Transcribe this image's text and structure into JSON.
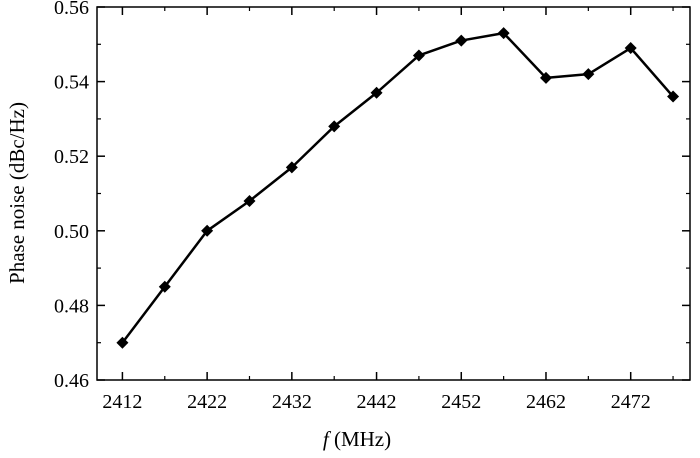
{
  "chart_data": {
    "type": "line",
    "xlabel_var": "f",
    "xlabel_unit": " (MHz)",
    "ylabel": "Phase noise (dBc/Hz)",
    "xlim": [
      2409,
      2479
    ],
    "ylim": [
      0.46,
      0.56
    ],
    "xticks": [
      2412,
      2422,
      2432,
      2442,
      2452,
      2462,
      2472
    ],
    "yticks": [
      0.46,
      0.48,
      0.5,
      0.52,
      0.54,
      0.56
    ],
    "ytick_labels": [
      "0.46",
      "0.48",
      "0.50",
      "0.52",
      "0.54",
      "0.56"
    ],
    "grid": false,
    "line_color": "#000000",
    "marker": "diamond",
    "series": [
      {
        "x": [
          2412,
          2417,
          2422,
          2427,
          2432,
          2437,
          2442,
          2447,
          2452,
          2457,
          2462,
          2467,
          2472,
          2477
        ],
        "values": [
          0.47,
          0.485,
          0.5,
          0.508,
          0.517,
          0.528,
          0.537,
          0.547,
          0.551,
          0.553,
          0.541,
          0.542,
          0.549,
          0.536
        ]
      }
    ]
  }
}
